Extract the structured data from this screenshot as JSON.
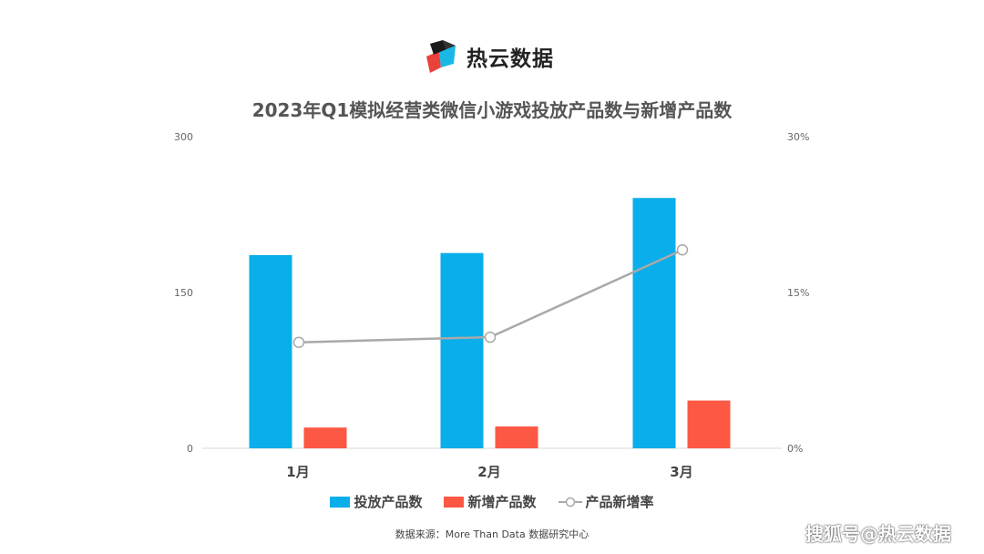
{
  "brand": {
    "name": "热云数据",
    "logo_icon": "cube-logo-icon"
  },
  "watermark": "搜狐号@热云数据",
  "source": "数据来源：More Than Data 数据研究中心",
  "colors": {
    "bar_investment": "#0aaeea",
    "bar_new": "#fd5843",
    "line_rate": "#a9a9a9",
    "title": "#555555",
    "axis": "#666666"
  },
  "chart_data": {
    "type": "bar",
    "title": "2023年Q1模拟经营类微信小游戏投放产品数与新增产品数",
    "categories": [
      "1月",
      "2月",
      "3月"
    ],
    "series": [
      {
        "name": "投放产品数",
        "type": "bar",
        "axis": "left",
        "values": [
          186,
          188,
          241
        ]
      },
      {
        "name": "新增产品数",
        "type": "bar",
        "axis": "left",
        "values": [
          20,
          21,
          46
        ]
      },
      {
        "name": "产品新增率",
        "type": "line",
        "axis": "right",
        "values": [
          10.2,
          10.7,
          19.1
        ]
      }
    ],
    "y_left": {
      "ylim": [
        0,
        300
      ],
      "ticks": [
        "0",
        "150",
        "300"
      ]
    },
    "y_right": {
      "ylim": [
        0,
        30
      ],
      "ticks": [
        "0%",
        "15%",
        "30%"
      ]
    },
    "grid": false,
    "legend_position": "bottom"
  }
}
